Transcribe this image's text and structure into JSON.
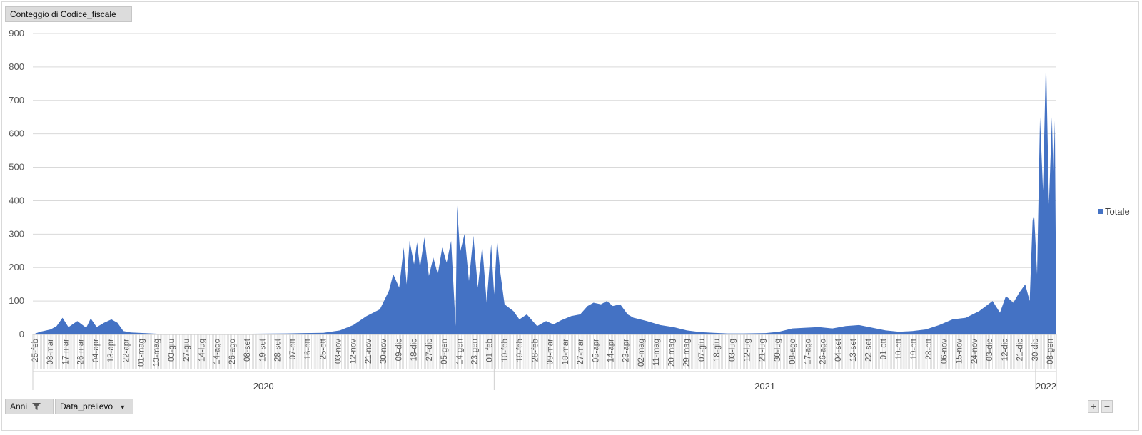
{
  "pivot": {
    "value_field": "Conteggio di Codice_fiscale",
    "filter_field": "Anni",
    "axis_field": "Data_prelievo"
  },
  "zoom": {
    "plus": "+",
    "minus": "−"
  },
  "colors": {
    "series": "#4472c4",
    "grid": "#d9d9d9",
    "axis_text": "#595959"
  },
  "icons": {
    "filter": "filter-icon",
    "dropdown": "chevron-down-icon"
  },
  "chart_data": {
    "type": "area",
    "title": "",
    "xlabel": "",
    "ylabel": "",
    "ylim": [
      0,
      900
    ],
    "yticks": [
      0,
      100,
      200,
      300,
      400,
      500,
      600,
      700,
      800,
      900
    ],
    "grid": true,
    "legend_position": "right",
    "x_start": "2020-02-25",
    "x_end": "2022-01-15",
    "x_tick_labels": [
      "25-feb",
      "08-mar",
      "17-mar",
      "26-mar",
      "04-apr",
      "13-apr",
      "22-apr",
      "01-mag",
      "13-mag",
      "03-giu",
      "27-giu",
      "14-lug",
      "14-ago",
      "26-ago",
      "08-set",
      "19-set",
      "28-set",
      "07-ott",
      "16-ott",
      "25-ott",
      "03-nov",
      "12-nov",
      "21-nov",
      "30-nov",
      "09-dic",
      "18-dic",
      "27-dic",
      "05-gen",
      "14-gen",
      "23-gen",
      "01-feb",
      "10-feb",
      "19-feb",
      "28-feb",
      "09-mar",
      "18-mar",
      "27-mar",
      "05-apr",
      "14-apr",
      "23-apr",
      "02-mag",
      "11-mag",
      "20-mag",
      "29-mag",
      "07-giu",
      "18-giu",
      "03-lug",
      "12-lug",
      "21-lug",
      "30-lug",
      "08-ago",
      "17-ago",
      "26-ago",
      "04-set",
      "13-set",
      "22-set",
      "01-ott",
      "10-ott",
      "19-ott",
      "28-ott",
      "06-nov",
      "15-nov",
      "24-nov",
      "03-dic",
      "12-dic",
      "21-dic",
      "30-dic",
      "08-gen"
    ],
    "years": [
      {
        "label": "2020",
        "from": "2020-02-25",
        "to": "2020-12-31"
      },
      {
        "label": "2021",
        "from": "2021-01-01",
        "to": "2021-12-31"
      },
      {
        "label": "2022",
        "from": "2022-01-01",
        "to": "2022-01-15"
      }
    ],
    "series": [
      {
        "name": "Totale",
        "points": [
          [
            "2020-02-25",
            0
          ],
          [
            "2020-03-01",
            8
          ],
          [
            "2020-03-08",
            15
          ],
          [
            "2020-03-12",
            25
          ],
          [
            "2020-03-16",
            50
          ],
          [
            "2020-03-20",
            22
          ],
          [
            "2020-03-26",
            40
          ],
          [
            "2020-04-01",
            20
          ],
          [
            "2020-04-04",
            48
          ],
          [
            "2020-04-08",
            22
          ],
          [
            "2020-04-13",
            35
          ],
          [
            "2020-04-18",
            45
          ],
          [
            "2020-04-22",
            35
          ],
          [
            "2020-04-26",
            10
          ],
          [
            "2020-05-01",
            6
          ],
          [
            "2020-05-10",
            4
          ],
          [
            "2020-05-20",
            2
          ],
          [
            "2020-06-15",
            1
          ],
          [
            "2020-07-15",
            2
          ],
          [
            "2020-08-14",
            3
          ],
          [
            "2020-08-26",
            4
          ],
          [
            "2020-09-08",
            5
          ],
          [
            "2020-09-19",
            12
          ],
          [
            "2020-09-28",
            28
          ],
          [
            "2020-10-07",
            55
          ],
          [
            "2020-10-16",
            75
          ],
          [
            "2020-10-22",
            130
          ],
          [
            "2020-10-25",
            180
          ],
          [
            "2020-10-29",
            140
          ],
          [
            "2020-11-01",
            260
          ],
          [
            "2020-11-03",
            150
          ],
          [
            "2020-11-05",
            280
          ],
          [
            "2020-11-08",
            210
          ],
          [
            "2020-11-10",
            275
          ],
          [
            "2020-11-12",
            200
          ],
          [
            "2020-11-15",
            290
          ],
          [
            "2020-11-18",
            175
          ],
          [
            "2020-11-21",
            230
          ],
          [
            "2020-11-24",
            180
          ],
          [
            "2020-11-27",
            260
          ],
          [
            "2020-11-30",
            215
          ],
          [
            "2020-12-03",
            280
          ],
          [
            "2020-12-06",
            25
          ],
          [
            "2020-12-07",
            385
          ],
          [
            "2020-12-09",
            245
          ],
          [
            "2020-12-12",
            300
          ],
          [
            "2020-12-15",
            160
          ],
          [
            "2020-12-18",
            295
          ],
          [
            "2020-12-21",
            140
          ],
          [
            "2020-12-24",
            265
          ],
          [
            "2020-12-27",
            95
          ],
          [
            "2020-12-30",
            270
          ],
          [
            "2021-01-01",
            120
          ],
          [
            "2021-01-03",
            285
          ],
          [
            "2021-01-05",
            190
          ],
          [
            "2021-01-08",
            90
          ],
          [
            "2021-01-14",
            70
          ],
          [
            "2021-01-18",
            45
          ],
          [
            "2021-01-23",
            60
          ],
          [
            "2021-01-30",
            25
          ],
          [
            "2021-02-05",
            40
          ],
          [
            "2021-02-10",
            30
          ],
          [
            "2021-02-15",
            42
          ],
          [
            "2021-02-22",
            55
          ],
          [
            "2021-02-28",
            60
          ],
          [
            "2021-03-05",
            85
          ],
          [
            "2021-03-09",
            95
          ],
          [
            "2021-03-14",
            90
          ],
          [
            "2021-03-18",
            100
          ],
          [
            "2021-03-22",
            85
          ],
          [
            "2021-03-27",
            90
          ],
          [
            "2021-04-01",
            60
          ],
          [
            "2021-04-05",
            50
          ],
          [
            "2021-04-14",
            40
          ],
          [
            "2021-04-23",
            28
          ],
          [
            "2021-05-02",
            22
          ],
          [
            "2021-05-11",
            12
          ],
          [
            "2021-05-20",
            7
          ],
          [
            "2021-05-29",
            5
          ],
          [
            "2021-06-07",
            3
          ],
          [
            "2021-06-18",
            3
          ],
          [
            "2021-07-03",
            4
          ],
          [
            "2021-07-12",
            8
          ],
          [
            "2021-07-21",
            18
          ],
          [
            "2021-07-30",
            20
          ],
          [
            "2021-08-08",
            22
          ],
          [
            "2021-08-17",
            18
          ],
          [
            "2021-08-26",
            25
          ],
          [
            "2021-09-04",
            28
          ],
          [
            "2021-09-13",
            20
          ],
          [
            "2021-09-22",
            12
          ],
          [
            "2021-10-01",
            8
          ],
          [
            "2021-10-10",
            10
          ],
          [
            "2021-10-19",
            15
          ],
          [
            "2021-10-28",
            28
          ],
          [
            "2021-11-06",
            45
          ],
          [
            "2021-11-15",
            50
          ],
          [
            "2021-11-24",
            70
          ],
          [
            "2021-12-03",
            100
          ],
          [
            "2021-12-08",
            65
          ],
          [
            "2021-12-12",
            115
          ],
          [
            "2021-12-17",
            95
          ],
          [
            "2021-12-21",
            125
          ],
          [
            "2021-12-25",
            150
          ],
          [
            "2021-12-28",
            100
          ],
          [
            "2021-12-30",
            340
          ],
          [
            "2021-12-31",
            360
          ],
          [
            "2022-01-02",
            180
          ],
          [
            "2022-01-04",
            650
          ],
          [
            "2022-01-06",
            430
          ],
          [
            "2022-01-08",
            830
          ],
          [
            "2022-01-10",
            390
          ],
          [
            "2022-01-12",
            650
          ],
          [
            "2022-01-13",
            470
          ],
          [
            "2022-01-14",
            640
          ],
          [
            "2022-01-15",
            0
          ]
        ]
      }
    ]
  }
}
